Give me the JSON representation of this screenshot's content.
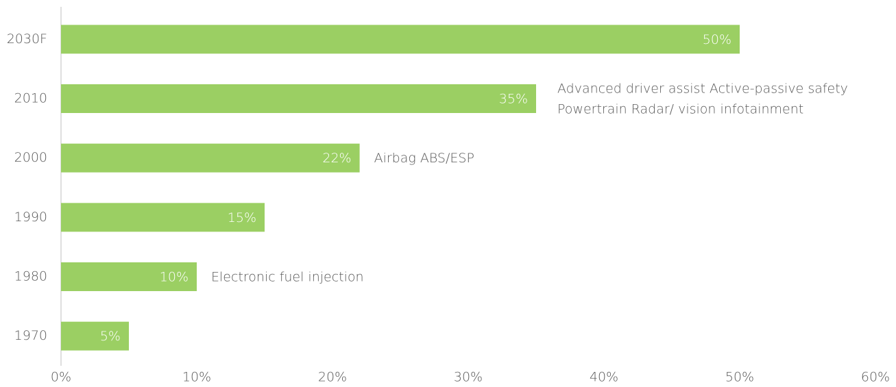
{
  "chart_data": {
    "type": "bar",
    "orientation": "horizontal",
    "categories": [
      "2030F",
      "2010",
      "2000",
      "1990",
      "1980",
      "1970"
    ],
    "values": [
      50,
      35,
      22,
      15,
      10,
      5
    ],
    "value_labels": [
      "50%",
      "35%",
      "22%",
      "15%",
      "10%",
      "5%"
    ],
    "annotations": [
      null,
      [
        "Advanced driver assist Active-passive safety",
        "Powertrain Radar/ vision infotainment"
      ],
      [
        "Airbag ABS/ESP"
      ],
      null,
      [
        "Electronic fuel injection"
      ],
      null
    ],
    "color": "#9bcf63",
    "xlim": [
      0,
      60
    ],
    "xticks": [
      {
        "value": 0,
        "label": "0%"
      },
      {
        "value": 10,
        "label": "10%"
      },
      {
        "value": 20,
        "label": "20%"
      },
      {
        "value": 30,
        "label": "30%"
      },
      {
        "value": 40,
        "label": "40%"
      },
      {
        "value": 50,
        "label": "50%"
      },
      {
        "value": 60,
        "label": "60%"
      }
    ],
    "grid": false
  }
}
